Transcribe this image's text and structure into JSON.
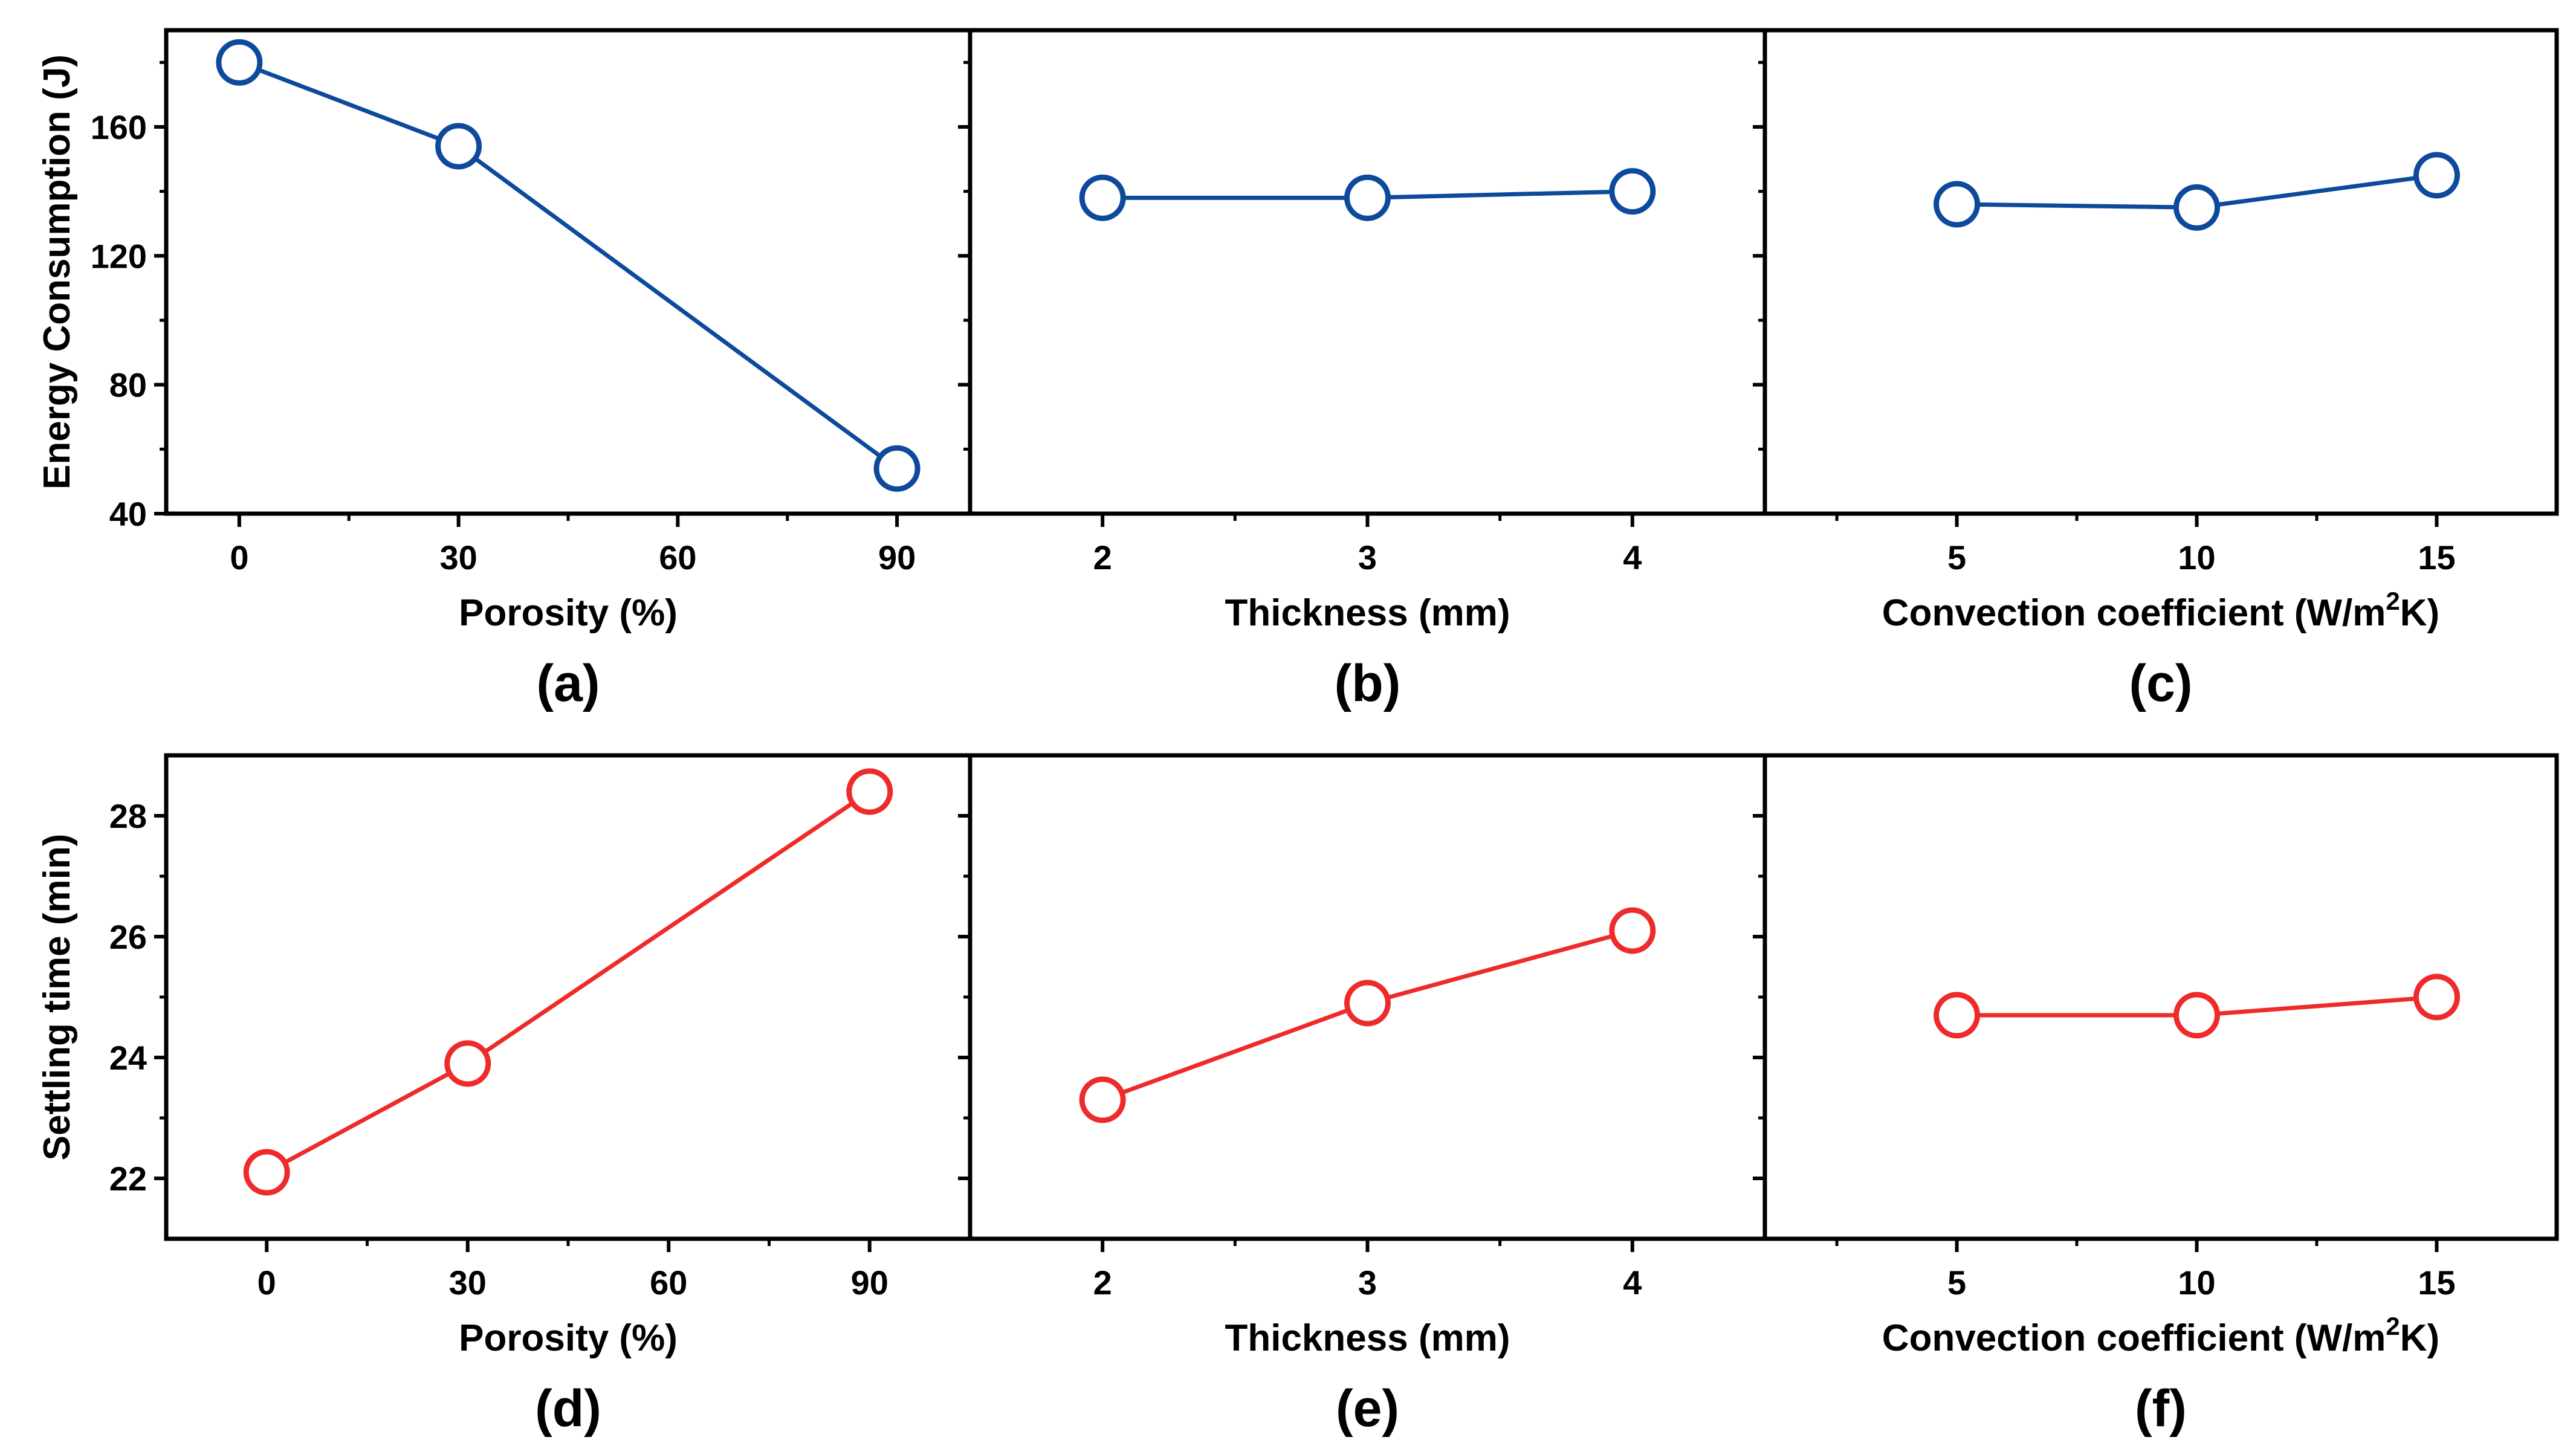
{
  "figure": {
    "colors": {
      "energy": "#0d4a9c",
      "settling": "#ee2a2a",
      "axis": "#000000"
    }
  },
  "chart_data": [
    {
      "id": "a",
      "type": "line",
      "panel_label": "(a)",
      "xlabel": "Porosity (%)",
      "ylabel": "Energy Consumption (J)",
      "x": [
        0,
        30,
        90
      ],
      "y": [
        180,
        154,
        54
      ],
      "xlim": [
        -10,
        100
      ],
      "ylim": [
        40,
        190
      ],
      "xticks": [
        0,
        30,
        60,
        90
      ],
      "xtick_labels": [
        "0",
        "30",
        "60",
        "90"
      ],
      "yticks": [
        40,
        80,
        120,
        160
      ],
      "ytick_labels": [
        "40",
        "80",
        "120",
        "160"
      ],
      "series_color": "#0d4a9c",
      "marker": "open-circle"
    },
    {
      "id": "b",
      "type": "line",
      "panel_label": "(b)",
      "xlabel": "Thickness (mm)",
      "ylabel": "",
      "x": [
        2,
        3,
        4
      ],
      "y": [
        138,
        138,
        140
      ],
      "xlim": [
        1.5,
        4.5
      ],
      "ylim": [
        40,
        190
      ],
      "xticks": [
        2,
        3,
        4
      ],
      "xtick_labels": [
        "2",
        "3",
        "4"
      ],
      "yticks": [
        40,
        80,
        120,
        160
      ],
      "ytick_labels": [],
      "series_color": "#0d4a9c",
      "marker": "open-circle"
    },
    {
      "id": "c",
      "type": "line",
      "panel_label": "(c)",
      "xlabel": "Convection coefficient (W/m",
      "xlabel_sup": "2",
      "xlabel_end": "K)",
      "ylabel": "",
      "x": [
        5,
        10,
        15
      ],
      "y": [
        136,
        135,
        145
      ],
      "xlim": [
        1,
        17.5
      ],
      "ylim": [
        40,
        190
      ],
      "xticks": [
        5,
        10,
        15
      ],
      "xtick_labels": [
        "5",
        "10",
        "15"
      ],
      "yticks": [
        40,
        80,
        120,
        160
      ],
      "ytick_labels": [],
      "series_color": "#0d4a9c",
      "marker": "open-circle"
    },
    {
      "id": "d",
      "type": "line",
      "panel_label": "(d)",
      "xlabel": "Porosity (%)",
      "ylabel": "Settling time (min)",
      "x": [
        0,
        30,
        90
      ],
      "y": [
        22.1,
        23.9,
        28.4
      ],
      "xlim": [
        -15,
        105
      ],
      "ylim": [
        21,
        29
      ],
      "xticks": [
        0,
        30,
        60,
        90
      ],
      "xtick_labels": [
        "0",
        "30",
        "60",
        "90"
      ],
      "yticks": [
        22,
        24,
        26,
        28
      ],
      "ytick_labels": [
        "22",
        "24",
        "26",
        "28"
      ],
      "series_color": "#ee2a2a",
      "marker": "open-circle"
    },
    {
      "id": "e",
      "type": "line",
      "panel_label": "(e)",
      "xlabel": "Thickness (mm)",
      "ylabel": "",
      "x": [
        2,
        3,
        4
      ],
      "y": [
        23.3,
        24.9,
        26.1
      ],
      "xlim": [
        1.5,
        4.5
      ],
      "ylim": [
        21,
        29
      ],
      "xticks": [
        2,
        3,
        4
      ],
      "xtick_labels": [
        "2",
        "3",
        "4"
      ],
      "yticks": [
        22,
        24,
        26,
        28
      ],
      "ytick_labels": [],
      "series_color": "#ee2a2a",
      "marker": "open-circle"
    },
    {
      "id": "f",
      "type": "line",
      "panel_label": "(f)",
      "xlabel": "Convection coefficient (W/m",
      "xlabel_sup": "2",
      "xlabel_end": "K)",
      "ylabel": "",
      "x": [
        5,
        10,
        15
      ],
      "y": [
        24.7,
        24.7,
        25.0
      ],
      "xlim": [
        1,
        17.5
      ],
      "ylim": [
        21,
        29
      ],
      "xticks": [
        5,
        10,
        15
      ],
      "xtick_labels": [
        "5",
        "10",
        "15"
      ],
      "yticks": [
        22,
        24,
        26,
        28
      ],
      "ytick_labels": [],
      "series_color": "#ee2a2a",
      "marker": "open-circle"
    }
  ]
}
